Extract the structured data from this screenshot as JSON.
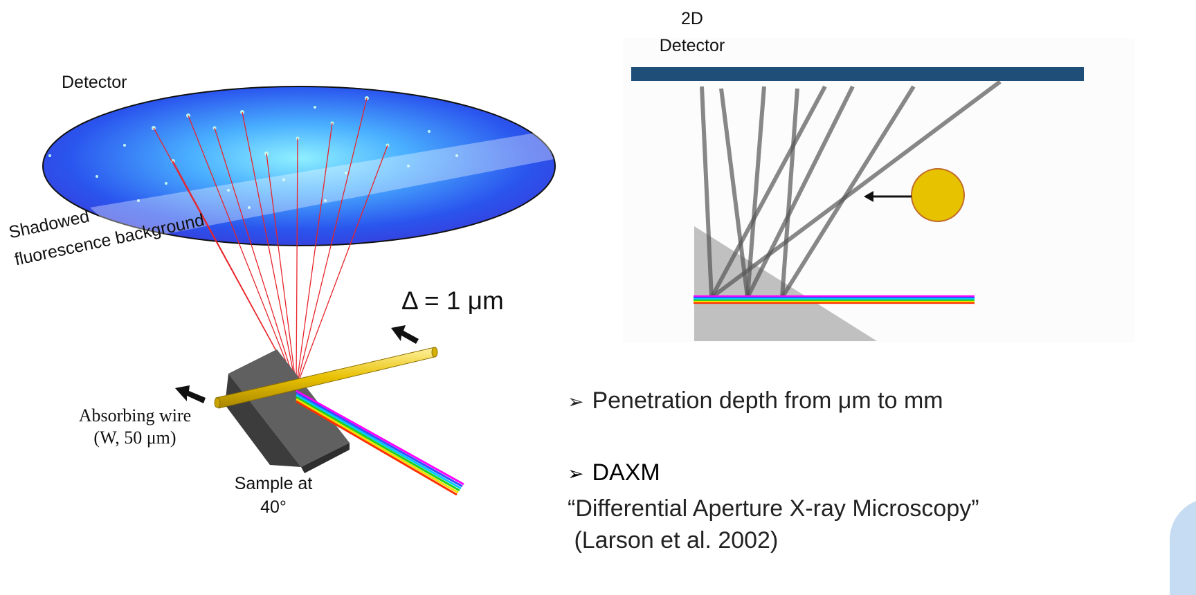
{
  "left_diagram": {
    "detector_label": "Detector",
    "shadow_label_line1": "Shadowed",
    "shadow_label_line2": "fluorescence background",
    "delta_label": "Δ = 1 μm",
    "wire_label_line1": "Absorbing wire",
    "wire_label_line2": "(W, 50 μm)",
    "sample_label_line1": "Sample at",
    "sample_label_line2": "40°"
  },
  "right_diagram": {
    "detector_label_line1": "2D",
    "detector_label_line2": "Detector"
  },
  "bullets": {
    "penetration": "Penetration depth from μm to mm",
    "daxm_title": "DAXM",
    "daxm_desc": "“Differential  Aperture X-ray Microscopy”",
    "daxm_ref": " (Larson et al. 2002)"
  },
  "colors": {
    "detector_bar": "#1f4e79",
    "wire": "#e8c000",
    "sample": "#555555",
    "ray": "#e8242a",
    "wedge": "#c0c0c0"
  }
}
